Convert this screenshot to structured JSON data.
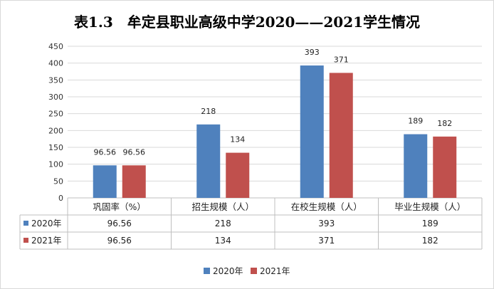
{
  "chart_data": {
    "type": "bar",
    "title": "表1.3　牟定县职业高级中学2020——2021学生情况",
    "categories": [
      "巩固率（%）",
      "招生规模（人）",
      "在校生规模（人）",
      "毕业生规模（人）"
    ],
    "series": [
      {
        "name": "2020年",
        "values": [
          96.56,
          218,
          393,
          189
        ],
        "color": "#4f81bd"
      },
      {
        "name": "2021年",
        "values": [
          96.56,
          134,
          371,
          182
        ],
        "color": "#c0504d"
      }
    ],
    "y_ticks": [
      "0",
      "50",
      "100",
      "150",
      "200",
      "250",
      "300",
      "350",
      "400",
      "450"
    ],
    "ylim": [
      0,
      450
    ],
    "grid": true,
    "legend_position": "bottom-center",
    "data_table": true
  }
}
